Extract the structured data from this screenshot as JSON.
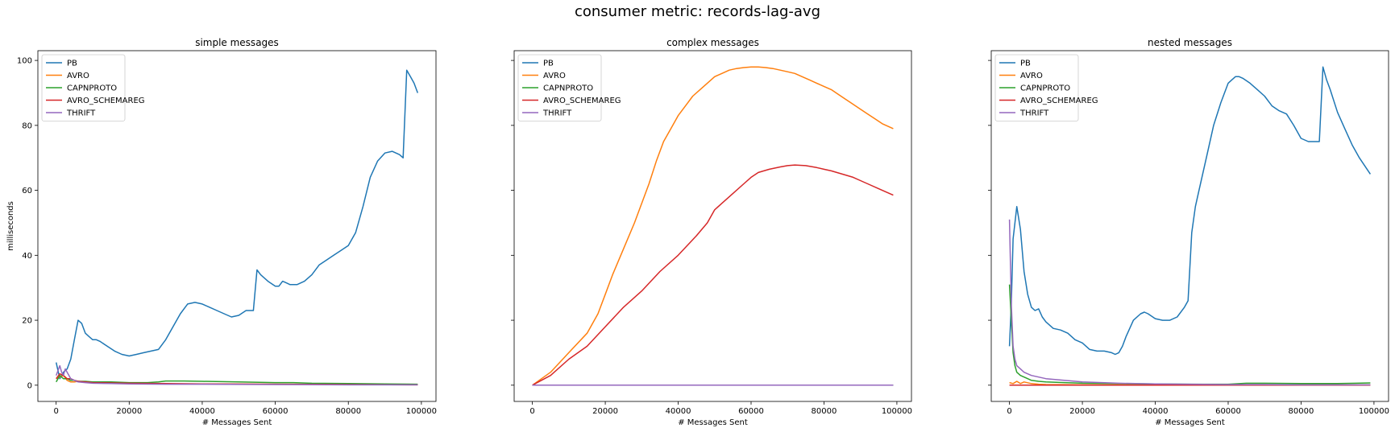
{
  "figure": {
    "title": "consumer metric: records-lag-avg"
  },
  "chart_data": [
    {
      "type": "line",
      "title": "simple messages",
      "xlabel": "# Messages Sent",
      "ylabel": "milliseconds",
      "xlim": [
        -5000,
        104000
      ],
      "ylim": [
        -5,
        103
      ],
      "xticks": [
        0,
        20000,
        40000,
        60000,
        80000,
        100000
      ],
      "yticks": [
        0,
        20,
        40,
        60,
        80,
        100
      ],
      "show_ytick_labels": true,
      "grid": false,
      "legend": "top-left",
      "series": [
        {
          "name": "PB",
          "color": "#1f77b4",
          "x": [
            0,
            1000,
            2000,
            3000,
            4000,
            5000,
            6000,
            7000,
            8000,
            9000,
            10000,
            11000,
            12000,
            14000,
            16000,
            18000,
            20000,
            22000,
            24000,
            26000,
            28000,
            30000,
            32000,
            34000,
            36000,
            38000,
            40000,
            42000,
            44000,
            46000,
            48000,
            50000,
            52000,
            54000,
            55000,
            56000,
            58000,
            60000,
            61000,
            62000,
            63000,
            64000,
            66000,
            68000,
            70000,
            72000,
            74000,
            76000,
            78000,
            80000,
            82000,
            84000,
            86000,
            88000,
            90000,
            92000,
            94000,
            95000,
            96000,
            97000,
            98000,
            99000
          ],
          "y": [
            7,
            2,
            4,
            5,
            8,
            14,
            20,
            19,
            16,
            15,
            14,
            14,
            13.5,
            12,
            10.5,
            9.5,
            9,
            9.5,
            10,
            10.5,
            11,
            14,
            18,
            22,
            25,
            25.5,
            25,
            24,
            23,
            22,
            21,
            21.5,
            23,
            23,
            35.5,
            34,
            32,
            30.5,
            30.5,
            32,
            31.5,
            31,
            31,
            32,
            34,
            37,
            38.5,
            40,
            41.5,
            43,
            47,
            55,
            64,
            69,
            71.5,
            72,
            71,
            70,
            97,
            95,
            93,
            90
          ]
        },
        {
          "name": "AVRO",
          "color": "#ff7f0e",
          "x": [
            0,
            1000,
            2000,
            3000,
            4000,
            5000,
            6000,
            8000,
            10000,
            15000,
            20000,
            30000,
            40000,
            60000,
            80000,
            99000
          ],
          "y": [
            2,
            2.5,
            3,
            1.5,
            1,
            1,
            1.2,
            1,
            0.8,
            0.6,
            0.5,
            0.4,
            0.4,
            0.3,
            0.3,
            0.2
          ]
        },
        {
          "name": "CAPNPROTO",
          "color": "#2ca02c",
          "x": [
            0,
            1000,
            2000,
            3000,
            4000,
            5000,
            6000,
            8000,
            10000,
            15000,
            20000,
            25000,
            28000,
            30000,
            35000,
            40000,
            50000,
            60000,
            65000,
            70000,
            80000,
            90000,
            99000
          ],
          "y": [
            1,
            3,
            2,
            2,
            1.5,
            1.5,
            1.2,
            1.2,
            1,
            1,
            0.8,
            0.8,
            1,
            1.3,
            1.3,
            1.2,
            1,
            0.8,
            0.8,
            0.6,
            0.5,
            0.4,
            0.3
          ]
        },
        {
          "name": "AVRO_SCHEMAREG",
          "color": "#d62728",
          "x": [
            0,
            1000,
            2000,
            3000,
            4000,
            5000,
            6000,
            8000,
            10000,
            15000,
            20000,
            30000,
            40000,
            60000,
            80000,
            99000
          ],
          "y": [
            2,
            3.5,
            3,
            2,
            2,
            1.5,
            1.2,
            1,
            0.8,
            0.7,
            0.6,
            0.5,
            0.4,
            0.3,
            0.2,
            0.1
          ]
        },
        {
          "name": "THRIFT",
          "color": "#9467bd",
          "x": [
            0,
            1000,
            1500,
            2000,
            2500,
            3000,
            4000,
            5000,
            6000,
            8000,
            10000,
            15000,
            20000,
            30000,
            40000,
            60000,
            80000,
            99000
          ],
          "y": [
            3,
            6,
            4,
            3,
            5,
            4,
            2,
            1.5,
            1,
            0.8,
            0.6,
            0.5,
            0.4,
            0.3,
            0.3,
            0.2,
            0.1,
            0.1
          ]
        }
      ]
    },
    {
      "type": "line",
      "title": "complex messages",
      "xlabel": "# Messages Sent",
      "ylabel": "",
      "xlim": [
        -5000,
        104000
      ],
      "ylim": [
        -5,
        103
      ],
      "xticks": [
        0,
        20000,
        40000,
        60000,
        80000,
        100000
      ],
      "yticks": [
        0,
        20,
        40,
        60,
        80,
        100
      ],
      "show_ytick_labels": false,
      "grid": false,
      "legend": "top-left",
      "series": [
        {
          "name": "PB",
          "color": "#1f77b4",
          "x": [
            0,
            99000
          ],
          "y": [
            0,
            0
          ]
        },
        {
          "name": "AVRO",
          "color": "#ff7f0e",
          "x": [
            0,
            5000,
            10000,
            15000,
            18000,
            20000,
            22000,
            25000,
            28000,
            30000,
            32000,
            34000,
            36000,
            38000,
            40000,
            42000,
            44000,
            46000,
            48000,
            50000,
            52000,
            54000,
            56000,
            58000,
            60000,
            62000,
            64000,
            66000,
            68000,
            70000,
            72000,
            74000,
            76000,
            78000,
            80000,
            82000,
            84000,
            86000,
            88000,
            90000,
            92000,
            94000,
            96000,
            99000
          ],
          "y": [
            0,
            4,
            10,
            16,
            22,
            28,
            34,
            42,
            50,
            56,
            62,
            69,
            75,
            79,
            83,
            86,
            89,
            91,
            93,
            95,
            96,
            97,
            97.5,
            97.8,
            98,
            98,
            97.8,
            97.5,
            97,
            96.5,
            96,
            95,
            94,
            93,
            92,
            91,
            89.5,
            88,
            86.5,
            85,
            83.5,
            82,
            80.5,
            79
          ]
        },
        {
          "name": "CAPNPROTO",
          "color": "#2ca02c",
          "x": [
            0,
            99000
          ],
          "y": [
            0,
            0
          ]
        },
        {
          "name": "AVRO_SCHEMAREG",
          "color": "#d62728",
          "x": [
            0,
            5000,
            10000,
            15000,
            20000,
            25000,
            30000,
            35000,
            40000,
            45000,
            48000,
            50000,
            52000,
            55000,
            58000,
            60000,
            62000,
            65000,
            68000,
            70000,
            72000,
            75000,
            78000,
            80000,
            82000,
            85000,
            88000,
            90000,
            92000,
            95000,
            97000,
            99000
          ],
          "y": [
            0,
            3,
            8,
            12,
            18,
            24,
            29,
            35,
            40,
            46,
            50,
            54,
            56,
            59,
            62,
            64,
            65.5,
            66.5,
            67.2,
            67.6,
            67.8,
            67.6,
            67,
            66.5,
            66,
            65,
            64,
            63,
            62,
            60.5,
            59.5,
            58.5
          ]
        },
        {
          "name": "THRIFT",
          "color": "#9467bd",
          "x": [
            0,
            99000
          ],
          "y": [
            0,
            0
          ]
        }
      ]
    },
    {
      "type": "line",
      "title": "nested messages",
      "xlabel": "# Messages Sent",
      "ylabel": "",
      "xlim": [
        -5000,
        104000
      ],
      "ylim": [
        -5,
        103
      ],
      "xticks": [
        0,
        20000,
        40000,
        60000,
        80000,
        100000
      ],
      "yticks": [
        0,
        20,
        40,
        60,
        80,
        100
      ],
      "show_ytick_labels": false,
      "grid": false,
      "legend": "top-left",
      "series": [
        {
          "name": "PB",
          "color": "#1f77b4",
          "x": [
            0,
            500,
            1000,
            1500,
            2000,
            3000,
            4000,
            5000,
            6000,
            7000,
            8000,
            9000,
            10000,
            12000,
            14000,
            16000,
            18000,
            20000,
            22000,
            24000,
            26000,
            28000,
            29000,
            30000,
            31000,
            32000,
            34000,
            36000,
            37000,
            38000,
            40000,
            42000,
            44000,
            46000,
            48000,
            49000,
            50000,
            51000,
            52000,
            54000,
            56000,
            58000,
            60000,
            61000,
            62000,
            63000,
            64000,
            66000,
            68000,
            70000,
            72000,
            74000,
            76000,
            78000,
            80000,
            82000,
            84000,
            85000,
            86000,
            87000,
            88000,
            90000,
            92000,
            94000,
            96000,
            99000
          ],
          "y": [
            12,
            25,
            45,
            50,
            55,
            48,
            35,
            28,
            24,
            23,
            23.5,
            21,
            19.5,
            17.5,
            17,
            16,
            14,
            13,
            11,
            10.5,
            10.5,
            10,
            9.5,
            10,
            12,
            15,
            20,
            22,
            22.5,
            22,
            20.5,
            20,
            20,
            21,
            24,
            26,
            47,
            55,
            60,
            70,
            80,
            87,
            93,
            94,
            95,
            95,
            94.5,
            93,
            91,
            89,
            86,
            84.5,
            83.5,
            80,
            76,
            75,
            75,
            75,
            98,
            94,
            91,
            84,
            79,
            74,
            70,
            65
          ]
        },
        {
          "name": "AVRO",
          "color": "#ff7f0e",
          "x": [
            0,
            1000,
            2000,
            3000,
            4000,
            6000,
            8000,
            10000,
            20000,
            40000,
            60000,
            80000,
            99000
          ],
          "y": [
            0.8,
            0.5,
            1.2,
            0.5,
            1,
            0.5,
            0.3,
            0.2,
            0.1,
            0.1,
            0.1,
            0.1,
            0.1
          ]
        },
        {
          "name": "CAPNPROTO",
          "color": "#2ca02c",
          "x": [
            0,
            500,
            1000,
            1500,
            2000,
            3000,
            4000,
            5000,
            6000,
            8000,
            10000,
            15000,
            20000,
            30000,
            40000,
            50000,
            60000,
            65000,
            70000,
            80000,
            90000,
            95000,
            99000
          ],
          "y": [
            31,
            20,
            10,
            6,
            4,
            3,
            2.5,
            2,
            1.5,
            1.2,
            1,
            0.8,
            0.6,
            0.5,
            0.4,
            0.3,
            0.3,
            0.6,
            0.6,
            0.5,
            0.5,
            0.6,
            0.7
          ]
        },
        {
          "name": "AVRO_SCHEMAREG",
          "color": "#d62728",
          "x": [
            0,
            99000
          ],
          "y": [
            0,
            0
          ]
        },
        {
          "name": "THRIFT",
          "color": "#9467bd",
          "x": [
            0,
            500,
            1000,
            1500,
            2000,
            3000,
            4000,
            5000,
            6000,
            8000,
            10000,
            15000,
            20000,
            30000,
            40000,
            50000,
            60000,
            70000,
            80000,
            90000,
            99000
          ],
          "y": [
            51,
            25,
            12,
            8,
            6,
            5,
            4,
            3.5,
            3,
            2.5,
            2,
            1.5,
            1,
            0.6,
            0.4,
            0.3,
            0.2,
            0.2,
            0.1,
            0.1,
            0.1
          ]
        }
      ]
    }
  ]
}
